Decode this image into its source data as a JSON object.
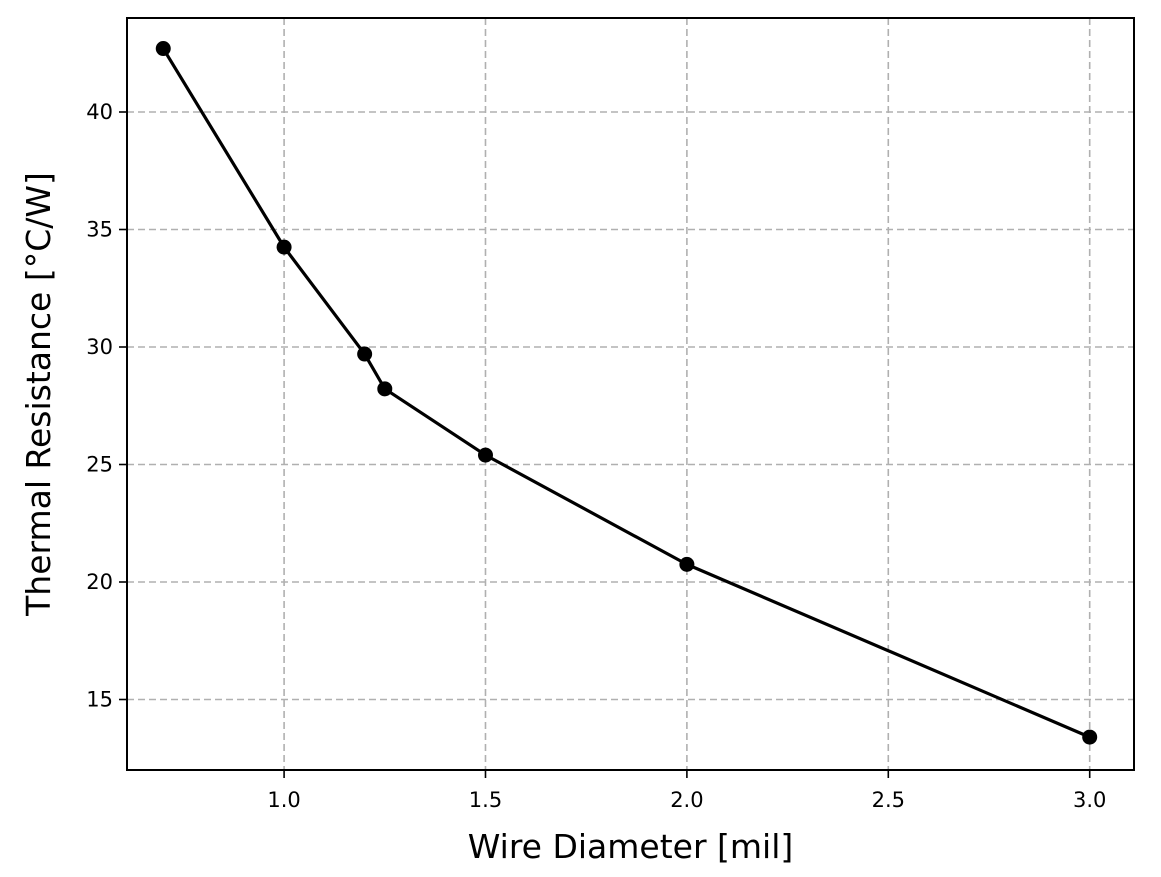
{
  "chart_data": {
    "type": "line",
    "title": "",
    "xlabel": "Wire Diameter [mil]",
    "ylabel": "Thermal Resistance [°C/W]",
    "xlim": [
      0.61,
      3.11
    ],
    "ylim": [
      12.0,
      44.0
    ],
    "xticks": [
      1.0,
      1.5,
      2.0,
      2.5,
      3.0
    ],
    "xtick_labels": [
      "1.0",
      "1.5",
      "2.0",
      "2.5",
      "3.0"
    ],
    "yticks": [
      15,
      20,
      25,
      30,
      35,
      40
    ],
    "ytick_labels": [
      "15",
      "20",
      "25",
      "30",
      "35",
      "40"
    ],
    "grid": true,
    "grid_style": "dashed",
    "legend": "none",
    "line_color": "#000000",
    "grid_color": "#b0b0b0",
    "series": [
      {
        "marker": "circle",
        "x": [
          0.7,
          1.0,
          1.2,
          1.25,
          1.5,
          2.0,
          3.0
        ],
        "y": [
          42.7,
          34.25,
          29.7,
          28.22,
          25.4,
          20.75,
          13.4
        ]
      }
    ]
  }
}
